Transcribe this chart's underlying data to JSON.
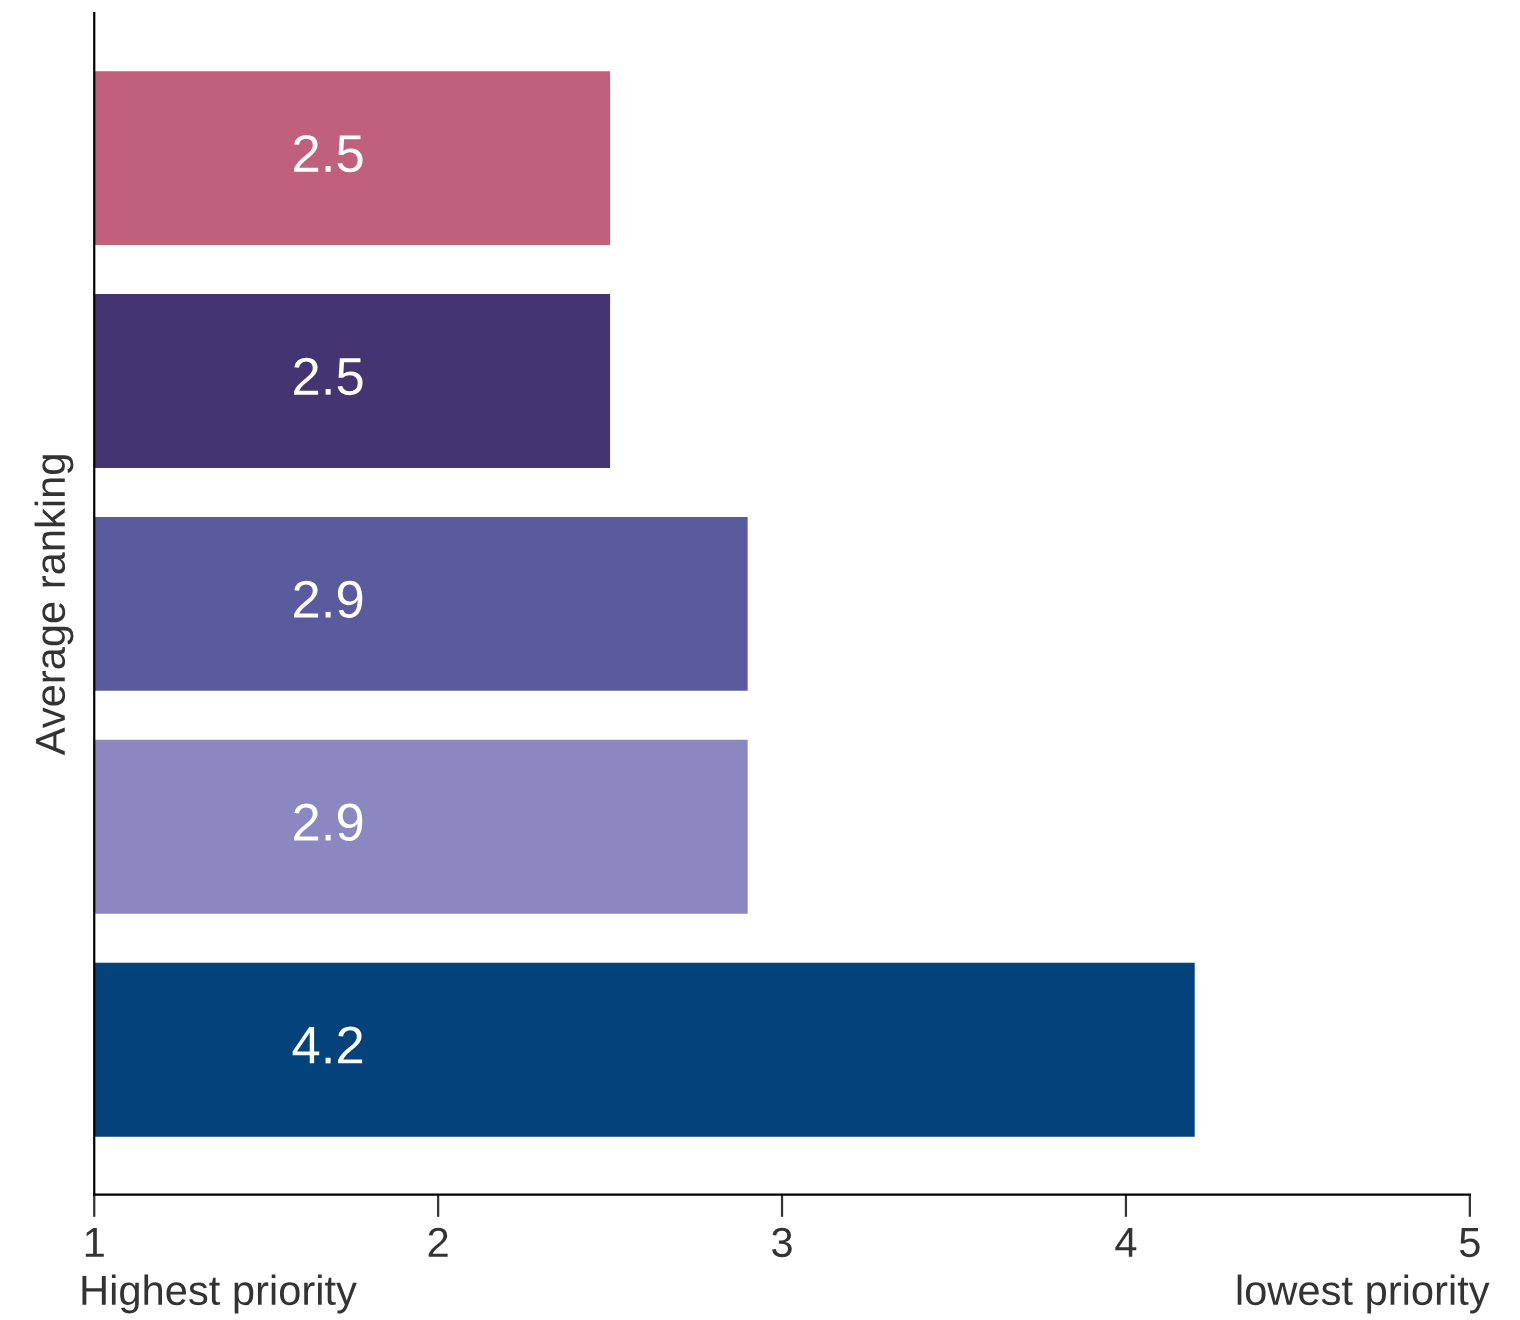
{
  "chart_data": {
    "type": "bar",
    "orientation": "horizontal",
    "ylabel": "Average ranking",
    "categories": [
      null,
      null,
      null,
      null,
      null
    ],
    "values": [
      2.5,
      2.5,
      2.9,
      2.9,
      4.2
    ],
    "colors": [
      "#c0607a",
      "#443572",
      "#5a5a9e",
      "#8b87c0",
      "#03427a"
    ],
    "xlim": [
      1,
      5
    ],
    "xticks": [
      1,
      2,
      3,
      4,
      5
    ],
    "grid": false,
    "data_labels": true,
    "annotations": [
      "Highest priority",
      "lowest priority"
    ]
  }
}
